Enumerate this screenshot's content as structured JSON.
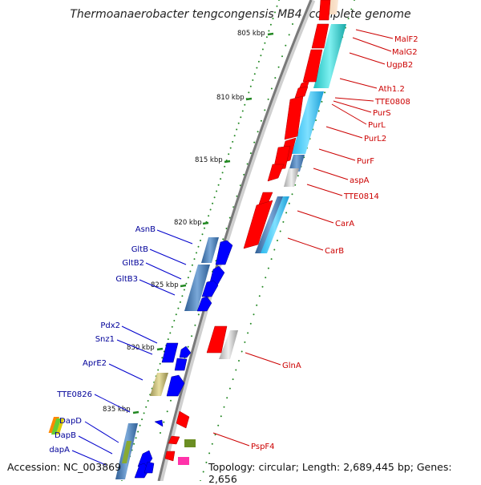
{
  "title": "Thermoanaerobacter tengcongensis MB4, complete genome",
  "footer": {
    "accession": "Accession: NC_003869",
    "topology": "Topology: circular; Length: 2,689,445 bp; Genes: 2,656"
  },
  "scale_labels": [
    "805 kbp",
    "810 kbp",
    "815 kbp",
    "820 kbp",
    "825 kbp",
    "830 kbp",
    "835 kbp"
  ],
  "right_genes": [
    "MalF2",
    "MalG2",
    "UgpB2",
    "Ath1.2",
    "TTE0808",
    "PurS",
    "PurL",
    "PurL2",
    "PurF",
    "aspA",
    "TTE0814",
    "CarA",
    "CarB",
    "GlnA",
    "PspF4"
  ],
  "left_genes": [
    "AsnB",
    "GltB",
    "GltB2",
    "GltB3",
    "Pdx2",
    "Snz1",
    "AprE2",
    "TTE0826",
    "DapD",
    "DapB",
    "dapA"
  ],
  "colors": {
    "right_label": "#cc0000",
    "left_label": "#000099",
    "red_gene": "#ff0000",
    "blue_gene": "#0000ff",
    "cyan_rna": "#33ccff",
    "teal_rna": "#33cccc",
    "steel_rna": "#4a7fb0",
    "gray_rna": "#c8c8c8",
    "olive_rna": "#c8bf7a",
    "tick_green": "#228822",
    "backbone": "#888888"
  }
}
